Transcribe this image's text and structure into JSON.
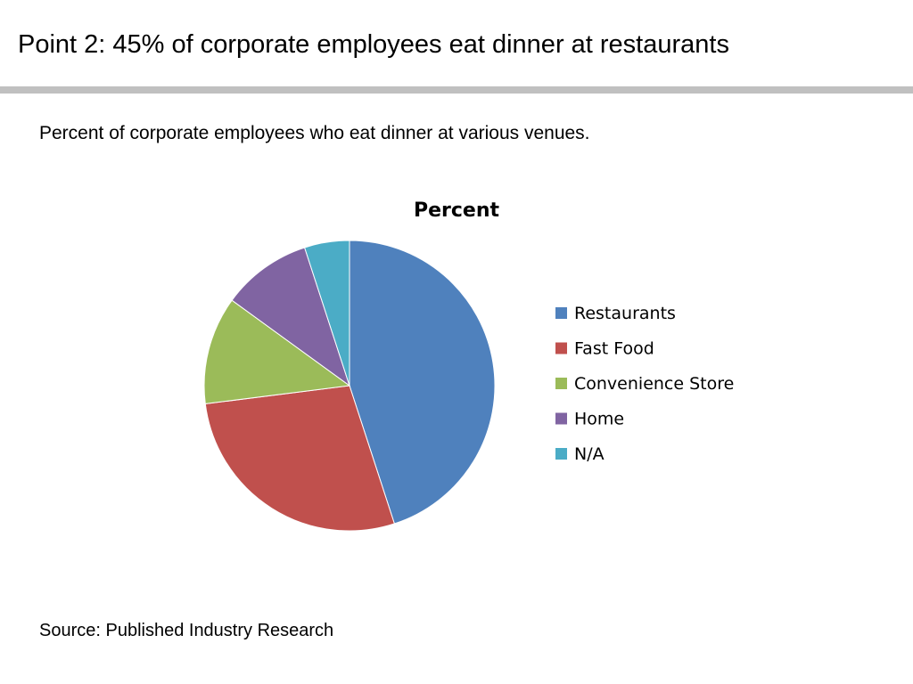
{
  "slide": {
    "title": "Point 2: 45% of corporate employees eat dinner at restaurants",
    "subtitle": "Percent of corporate employees who eat dinner at various venues.",
    "source": "Source: Published Industry Research"
  },
  "chart_data": {
    "type": "pie",
    "title": "Percent",
    "legend_position": "right",
    "categories": [
      "Restaurants",
      "Fast Food",
      "Convenience Store",
      "Home",
      "N/A"
    ],
    "values": [
      45,
      28,
      12,
      10,
      5
    ],
    "colors": [
      "#4f81bd",
      "#c0504d",
      "#9bbb59",
      "#8064a2",
      "#4bacc6"
    ]
  }
}
